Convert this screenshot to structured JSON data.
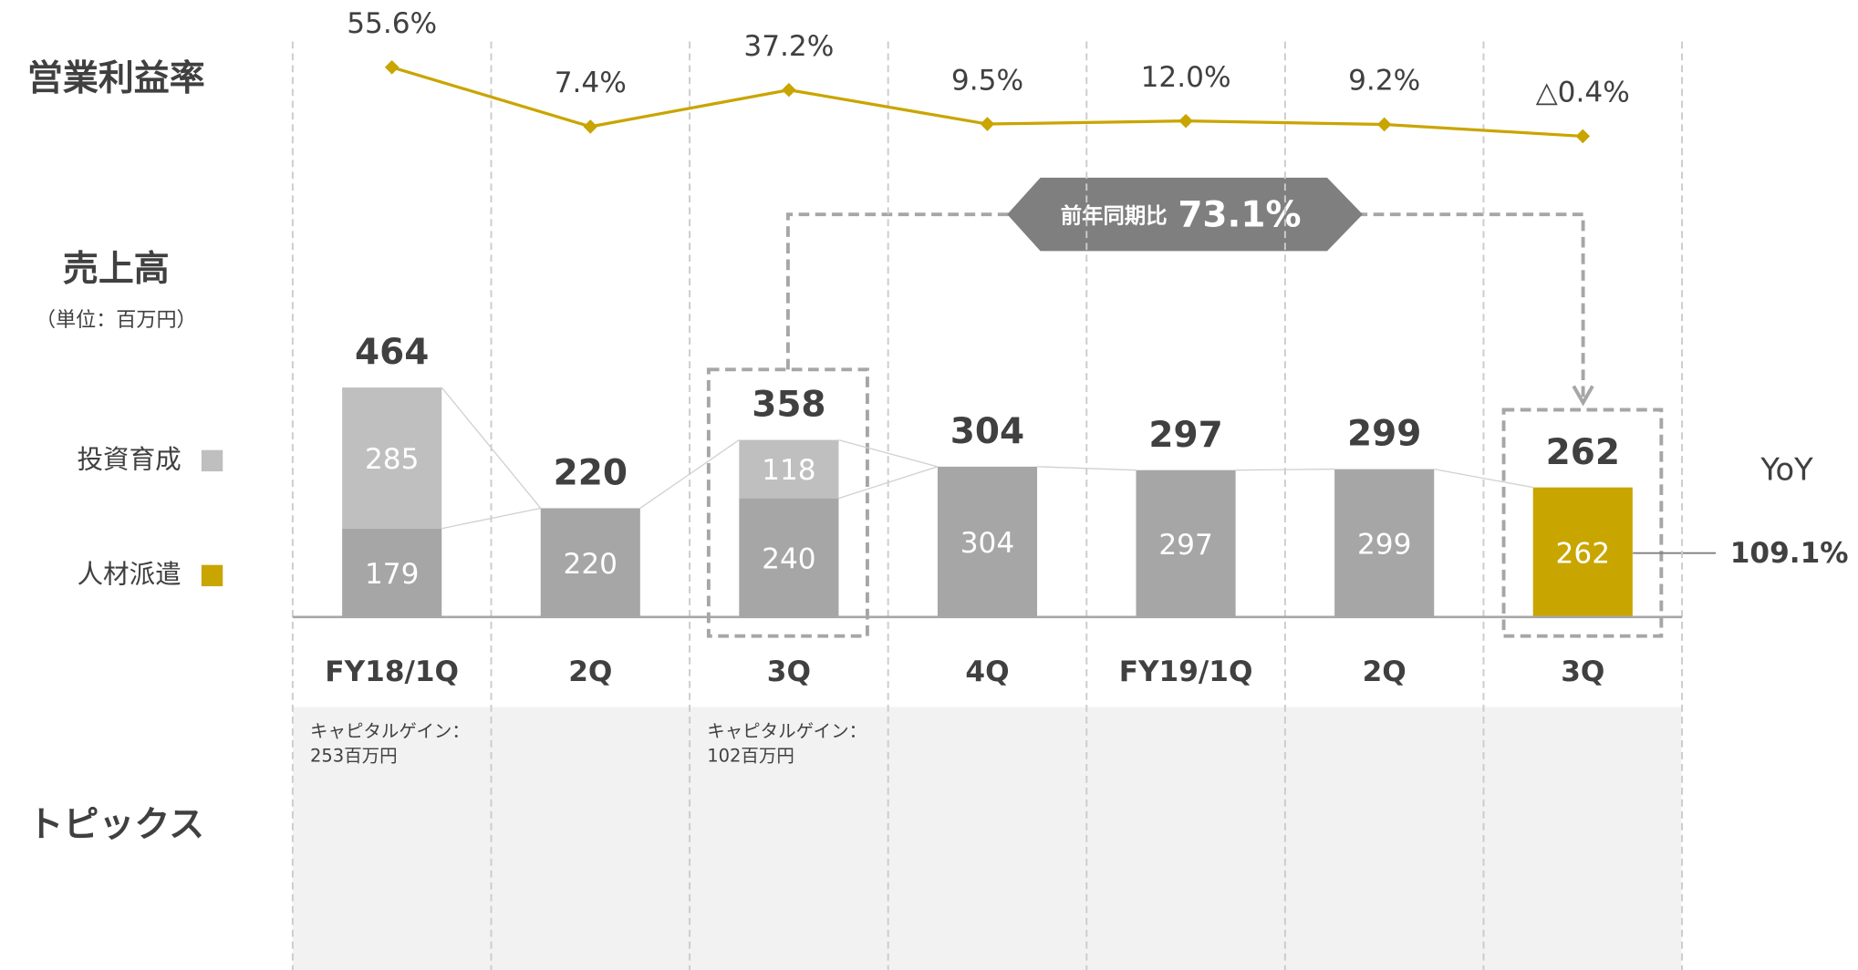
{
  "chart_data": {
    "type": "bar",
    "stacked": true,
    "row_labels": {
      "margin": "営業利益率",
      "sales": "売上高",
      "unit": "（単位：百万円）",
      "topics": "トピックス"
    },
    "categories": [
      "FY18/1Q",
      "2Q",
      "3Q",
      "4Q",
      "FY19/1Q",
      "2Q",
      "3Q"
    ],
    "series": [
      {
        "name": "人材派遣",
        "color": "#c9a500",
        "bar_colors": [
          "#a6a6a6",
          "#a6a6a6",
          "#a6a6a6",
          "#a6a6a6",
          "#a6a6a6",
          "#a6a6a6",
          "#c9a500"
        ],
        "values": [
          179,
          220,
          240,
          304,
          297,
          299,
          262
        ]
      },
      {
        "name": "投資育成",
        "color": "#bfbfbf",
        "values": [
          285,
          null,
          118,
          null,
          null,
          null,
          null
        ]
      }
    ],
    "totals": [
      464,
      220,
      358,
      304,
      297,
      299,
      262
    ],
    "ylim": [
      0,
      1240
    ],
    "line_series": {
      "type": "line",
      "color": "#c9a500",
      "axis": "y2",
      "values": [
        55.6,
        7.4,
        37.2,
        9.5,
        12.0,
        9.2,
        -0.4
      ],
      "value_labels": [
        "55.6%",
        "7.4%",
        "37.2%",
        "9.5%",
        "12.0%",
        "9.2%",
        "△0.4%"
      ]
    },
    "y2lim": [
      -20,
      90
    ],
    "topics": [
      [
        "キャピタルゲイン：",
        "253百万円"
      ],
      null,
      [
        "キャピタルゲイン：",
        "102百万円"
      ],
      null,
      null,
      null,
      null
    ],
    "comparison": {
      "label": "前年同期比",
      "value": 73.1,
      "value_label": "73.1%"
    },
    "yoy": {
      "label": "YoY",
      "value": 109.1,
      "value_label": "109.1%"
    }
  }
}
